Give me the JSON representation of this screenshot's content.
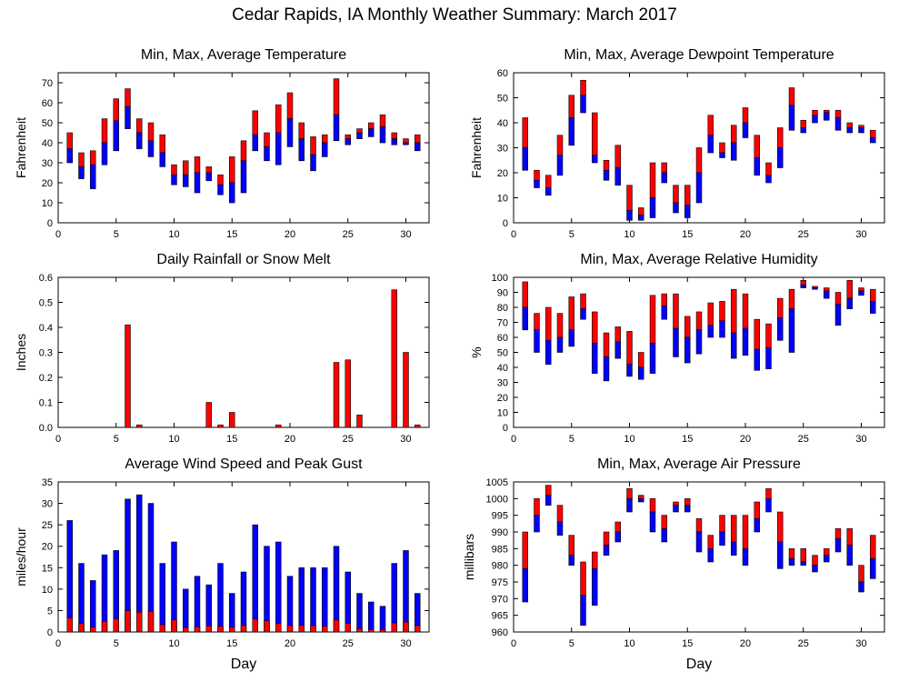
{
  "title": "Cedar Rapids, IA Monthly Weather Summary: March 2017",
  "colors": {
    "max": "#ff0000",
    "min": "#0000ff",
    "bar_outline": "#000000"
  },
  "chart_data": [
    {
      "id": "temp",
      "type": "bar",
      "title": "Min, Max, Average Temperature",
      "xlabel": "",
      "ylabel": "Fahrenheit",
      "xlim": [
        0,
        32
      ],
      "ylim": [
        0,
        75
      ],
      "xticks": [
        0,
        5,
        10,
        15,
        20,
        25,
        30
      ],
      "yticks": [
        0,
        10,
        20,
        30,
        40,
        50,
        60,
        70
      ],
      "grid": false,
      "x": [
        1,
        2,
        3,
        4,
        5,
        6,
        7,
        8,
        9,
        10,
        11,
        12,
        13,
        14,
        15,
        16,
        17,
        18,
        19,
        20,
        21,
        22,
        23,
        24,
        25,
        26,
        27,
        28,
        29,
        30,
        31
      ],
      "series": [
        {
          "field": "min",
          "values": [
            30,
            22,
            17,
            29,
            36,
            47,
            37,
            33,
            28,
            19,
            18,
            15,
            21,
            14,
            10,
            15,
            36,
            31,
            29,
            38,
            31,
            26,
            33,
            41,
            39,
            42,
            43,
            40,
            39,
            39,
            36
          ]
        },
        {
          "field": "avg",
          "values": [
            37,
            28,
            29,
            40,
            51,
            58,
            45,
            41,
            35,
            24,
            24,
            25,
            25,
            19,
            20,
            31,
            44,
            38,
            45,
            52,
            42,
            34,
            40,
            54,
            42,
            45,
            47,
            48,
            42,
            40,
            40
          ]
        },
        {
          "field": "max",
          "values": [
            45,
            35,
            36,
            52,
            62,
            67,
            52,
            50,
            44,
            29,
            31,
            33,
            28,
            24,
            33,
            41,
            56,
            45,
            59,
            65,
            50,
            43,
            44,
            72,
            44,
            47,
            50,
            54,
            45,
            42,
            44
          ]
        }
      ]
    },
    {
      "id": "dew",
      "type": "bar",
      "title": "Min, Max, Average Dewpoint Temperature",
      "xlabel": "",
      "ylabel": "Fahrenheit",
      "xlim": [
        0,
        32
      ],
      "ylim": [
        0,
        60
      ],
      "xticks": [
        0,
        5,
        10,
        15,
        20,
        25,
        30
      ],
      "yticks": [
        0,
        10,
        20,
        30,
        40,
        50,
        60
      ],
      "grid": false,
      "x": [
        1,
        2,
        3,
        4,
        5,
        6,
        7,
        8,
        9,
        10,
        11,
        12,
        13,
        14,
        15,
        16,
        17,
        18,
        19,
        20,
        21,
        22,
        23,
        24,
        25,
        26,
        27,
        28,
        29,
        30,
        31
      ],
      "series": [
        {
          "field": "min",
          "values": [
            21,
            14,
            11,
            19,
            31,
            44,
            24,
            17,
            15,
            1,
            1,
            2,
            16,
            4,
            2,
            8,
            28,
            26,
            25,
            34,
            19,
            16,
            22,
            37,
            36,
            40,
            41,
            37,
            36,
            36,
            32
          ]
        },
        {
          "field": "avg",
          "values": [
            30,
            17,
            14,
            27,
            42,
            51,
            27,
            21,
            22,
            5,
            3,
            10,
            20,
            8,
            7,
            20,
            35,
            28,
            32,
            40,
            26,
            19,
            30,
            47,
            38,
            43,
            44,
            42,
            38,
            38,
            34
          ]
        },
        {
          "field": "max",
          "values": [
            42,
            21,
            19,
            35,
            51,
            57,
            44,
            25,
            31,
            15,
            6,
            24,
            24,
            15,
            15,
            30,
            43,
            32,
            39,
            46,
            35,
            24,
            38,
            54,
            41,
            45,
            45,
            45,
            40,
            39,
            37
          ]
        }
      ]
    },
    {
      "id": "rain",
      "type": "bar",
      "title": "Daily Rainfall or Snow Melt",
      "xlabel": "",
      "ylabel": "Inches",
      "xlim": [
        0,
        32
      ],
      "ylim": [
        0,
        0.6
      ],
      "xticks": [
        0,
        5,
        10,
        15,
        20,
        25,
        30
      ],
      "yticks": [
        0,
        0.1,
        0.2,
        0.3,
        0.4,
        0.5,
        0.6
      ],
      "ytick_labels": [
        "0.0",
        "0.1",
        "0.2",
        "0.3",
        "0.4",
        "0.5",
        "0.6"
      ],
      "grid": false,
      "x": [
        1,
        2,
        3,
        4,
        5,
        6,
        7,
        8,
        9,
        10,
        11,
        12,
        13,
        14,
        15,
        16,
        17,
        18,
        19,
        20,
        21,
        22,
        23,
        24,
        25,
        26,
        27,
        28,
        29,
        30,
        31
      ],
      "series": [
        {
          "field": "precip",
          "values": [
            0,
            0,
            0,
            0,
            0,
            0.41,
            0.01,
            0,
            0,
            0,
            0,
            0,
            0.1,
            0.01,
            0.06,
            0,
            0,
            0,
            0.01,
            0,
            0,
            0,
            0,
            0.26,
            0.27,
            0.05,
            0,
            0,
            0.55,
            0.3,
            0.01
          ]
        }
      ]
    },
    {
      "id": "rh",
      "type": "bar",
      "title": "Min, Max, Average Relative Humidity",
      "xlabel": "",
      "ylabel": "%",
      "xlim": [
        0,
        32
      ],
      "ylim": [
        0,
        100
      ],
      "xticks": [
        0,
        5,
        10,
        15,
        20,
        25,
        30
      ],
      "yticks": [
        0,
        10,
        20,
        30,
        40,
        50,
        60,
        70,
        80,
        90,
        100
      ],
      "grid": false,
      "x": [
        1,
        2,
        3,
        4,
        5,
        6,
        7,
        8,
        9,
        10,
        11,
        12,
        13,
        14,
        15,
        16,
        17,
        18,
        19,
        20,
        21,
        22,
        23,
        24,
        25,
        26,
        27,
        28,
        29,
        30,
        31
      ],
      "series": [
        {
          "field": "min",
          "values": [
            65,
            50,
            42,
            50,
            54,
            72,
            36,
            31,
            46,
            34,
            32,
            36,
            72,
            47,
            43,
            49,
            60,
            60,
            46,
            48,
            38,
            39,
            58,
            50,
            93,
            92,
            86,
            68,
            79,
            88,
            76
          ]
        },
        {
          "field": "avg",
          "values": [
            80,
            65,
            58,
            60,
            65,
            79,
            56,
            47,
            57,
            42,
            40,
            56,
            81,
            66,
            60,
            65,
            68,
            71,
            63,
            66,
            52,
            53,
            73,
            79,
            95,
            93,
            91,
            82,
            86,
            91,
            84
          ]
        },
        {
          "field": "max",
          "values": [
            97,
            76,
            80,
            76,
            87,
            89,
            77,
            63,
            67,
            64,
            50,
            88,
            89,
            89,
            74,
            77,
            83,
            84,
            92,
            89,
            72,
            69,
            86,
            92,
            98,
            94,
            93,
            90,
            98,
            93,
            92
          ]
        }
      ]
    },
    {
      "id": "wind",
      "type": "bar",
      "title": "Average Wind Speed and Peak Gust",
      "xlabel": "Day",
      "ylabel": "miles/hour",
      "xlim": [
        0,
        32
      ],
      "ylim": [
        0,
        35
      ],
      "xticks": [
        0,
        5,
        10,
        15,
        20,
        25,
        30
      ],
      "yticks": [
        0,
        5,
        10,
        15,
        20,
        25,
        30,
        35
      ],
      "grid": false,
      "x": [
        1,
        2,
        3,
        4,
        5,
        6,
        7,
        8,
        9,
        10,
        11,
        12,
        13,
        14,
        15,
        16,
        17,
        18,
        19,
        20,
        21,
        22,
        23,
        24,
        25,
        26,
        27,
        28,
        29,
        30,
        31
      ],
      "series": [
        {
          "field": "avg",
          "values": [
            3.3,
            2.0,
            1.1,
            2.5,
            3.1,
            5.0,
            4.6,
            4.8,
            1.7,
            2.8,
            1.0,
            1.2,
            1.4,
            1.3,
            1.1,
            1.5,
            3.0,
            2.6,
            2.0,
            1.5,
            1.6,
            1.5,
            1.3,
            2.8,
            2.0,
            0.8,
            0.6,
            0.6,
            2.1,
            2.3,
            1.5
          ]
        },
        {
          "field": "gust",
          "values": [
            26,
            16,
            12,
            18,
            19,
            31,
            32,
            30,
            16,
            21,
            10,
            13,
            11,
            16,
            9,
            14,
            25,
            20,
            21,
            13,
            15,
            15,
            15,
            20,
            14,
            9,
            7,
            6,
            16,
            19,
            9
          ]
        }
      ]
    },
    {
      "id": "pres",
      "type": "bar",
      "title": "Min, Max, Average Air Pressure",
      "xlabel": "Day",
      "ylabel": "millibars",
      "xlim": [
        0,
        32
      ],
      "ylim": [
        960,
        1005
      ],
      "xticks": [
        0,
        5,
        10,
        15,
        20,
        25,
        30
      ],
      "yticks": [
        960,
        965,
        970,
        975,
        980,
        985,
        990,
        995,
        1000,
        1005
      ],
      "grid": false,
      "x": [
        1,
        2,
        3,
        4,
        5,
        6,
        7,
        8,
        9,
        10,
        11,
        12,
        13,
        14,
        15,
        16,
        17,
        18,
        19,
        20,
        21,
        22,
        23,
        24,
        25,
        26,
        27,
        28,
        29,
        30,
        31
      ],
      "series": [
        {
          "field": "min",
          "values": [
            969,
            990,
            998,
            989,
            980,
            962,
            968,
            983,
            987,
            996,
            999,
            990,
            987,
            996,
            996,
            984,
            981,
            986,
            983,
            980,
            990,
            996,
            979,
            980,
            980,
            978,
            981,
            984,
            980,
            972,
            976
          ]
        },
        {
          "field": "avg",
          "values": [
            979,
            995,
            1001,
            993,
            983,
            971,
            979,
            986,
            990,
            1000,
            1000,
            996,
            991,
            998,
            998,
            990,
            985,
            990,
            987,
            985,
            994,
            1000,
            987,
            982,
            981,
            980,
            983,
            988,
            986,
            975,
            982
          ]
        },
        {
          "field": "max",
          "values": [
            990,
            1000,
            1004,
            998,
            989,
            981,
            984,
            990,
            993,
            1003,
            1001,
            1000,
            995,
            999,
            1000,
            994,
            989,
            995,
            995,
            995,
            999,
            1003,
            996,
            985,
            985,
            983,
            985,
            991,
            991,
            980,
            989
          ]
        }
      ]
    }
  ]
}
